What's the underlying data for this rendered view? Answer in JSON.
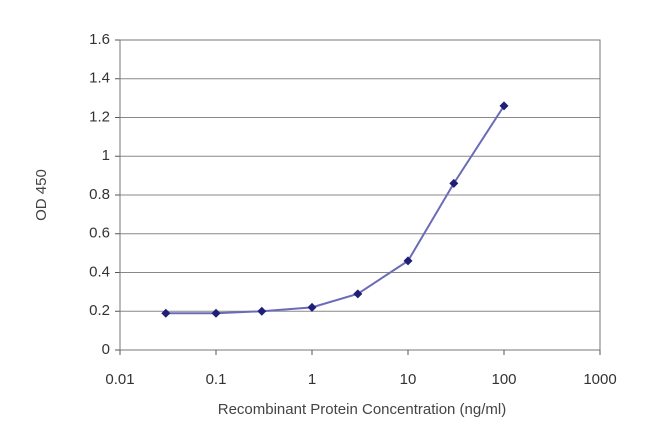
{
  "chart_data": {
    "type": "line",
    "x": [
      0.03,
      0.1,
      0.3,
      1,
      3,
      10,
      30,
      100
    ],
    "values": [
      0.19,
      0.19,
      0.2,
      0.22,
      0.29,
      0.46,
      0.86,
      1.26
    ],
    "color": "#6b6bb8",
    "marker_color": "#1f1f78",
    "xlabel": "Recombinant Protein Concentration (ng/ml)",
    "ylabel": "OD 450",
    "xscale": "log",
    "xlim": [
      0.01,
      1000
    ],
    "xticks": [
      0.01,
      0.1,
      1,
      10,
      100,
      1000
    ],
    "ylim": [
      0,
      1.6
    ],
    "yticks": [
      0,
      0.2,
      0.4,
      0.6,
      0.8,
      1,
      1.2,
      1.4,
      1.6
    ],
    "grid": true
  }
}
